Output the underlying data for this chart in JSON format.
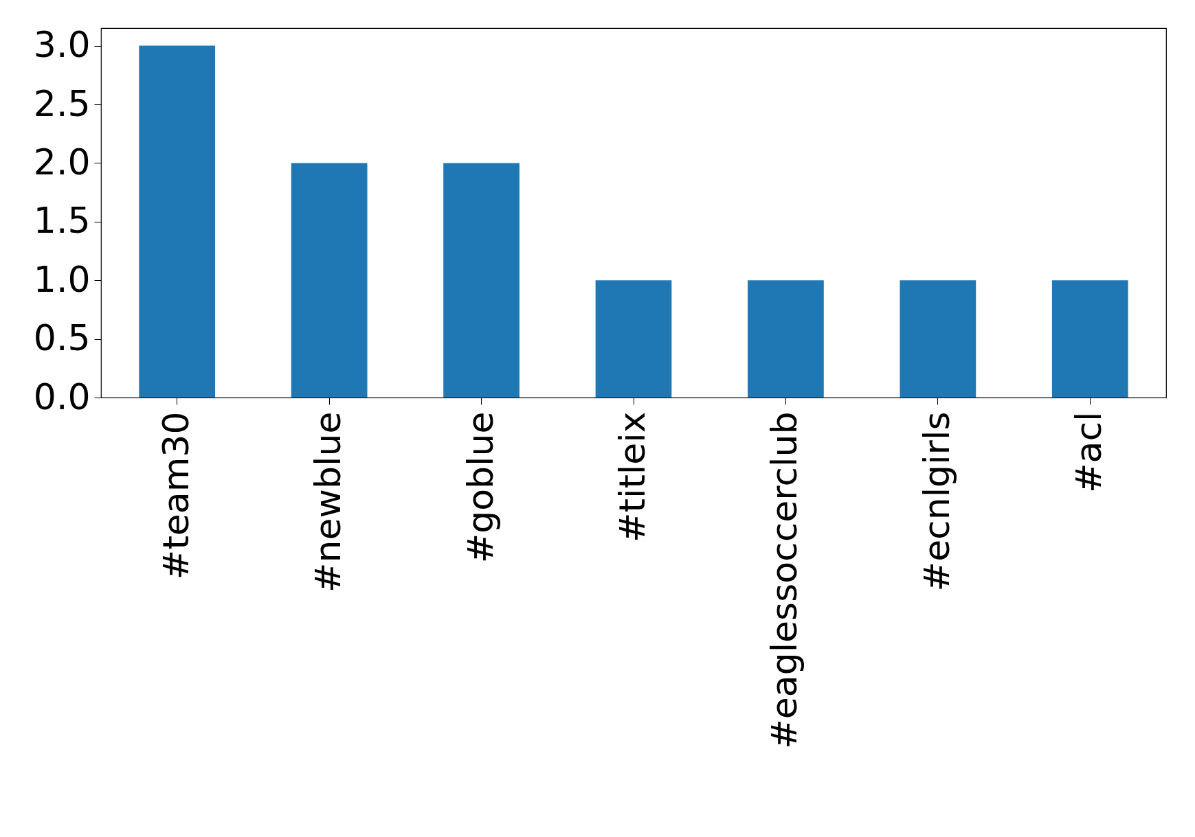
{
  "chart_data": {
    "type": "bar",
    "categories": [
      "#team30",
      "#newblue",
      "#goblue",
      "#titleix",
      "#eaglessoccerclub",
      "#ecnlgirls",
      "#acl"
    ],
    "values": [
      3,
      2,
      2,
      1,
      1,
      1,
      1
    ],
    "color": "#1f77b4",
    "ylim": [
      0,
      3.15
    ],
    "yticks": [
      {
        "value": 0,
        "label": "0.0"
      },
      0.5,
      {
        "value": 1,
        "label": "1.0"
      },
      1.5,
      {
        "value": 2,
        "label": "2.0"
      },
      2.5,
      {
        "value": 3,
        "label": "3.0"
      }
    ],
    "grid": false
  }
}
